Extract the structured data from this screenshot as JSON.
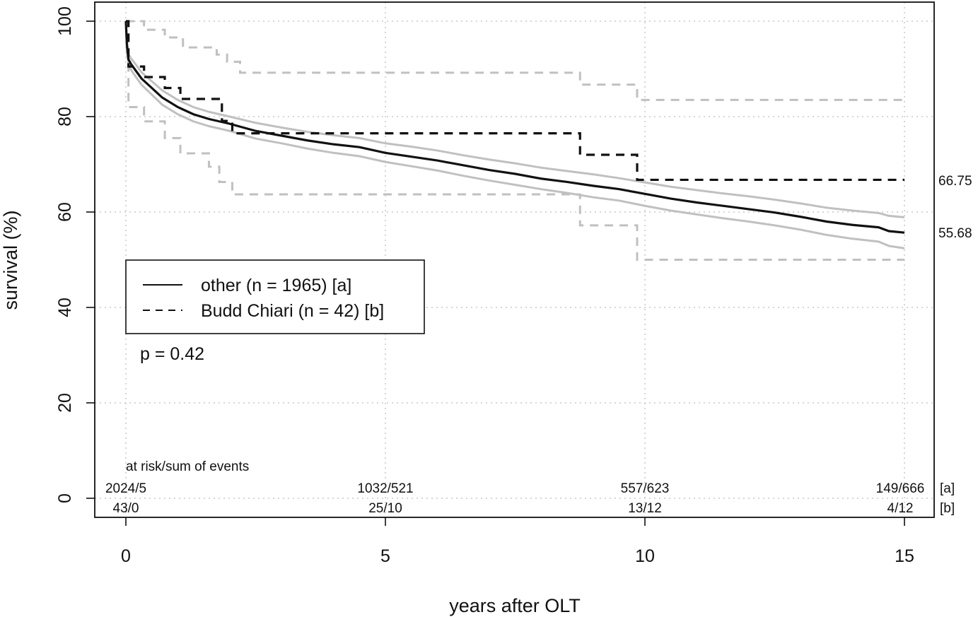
{
  "chart_data": {
    "type": "line",
    "xlabel": "years after OLT",
    "ylabel": "survival (%)",
    "xlim": [
      -0.6,
      15.6
    ],
    "ylim": [
      -4,
      104
    ],
    "x_ticks": [
      0,
      5,
      10,
      15
    ],
    "y_ticks": [
      0,
      20,
      40,
      60,
      80,
      100
    ],
    "grid": true,
    "legend_position": "middle-left",
    "legend": [
      {
        "label": "other (n = 1965) [a]",
        "style": "solid"
      },
      {
        "label": "Budd Chiari (n = 42) [b]",
        "style": "dashed"
      }
    ],
    "annotation_p": "p = 0.42",
    "risk_table": {
      "title": "at risk/sum of events",
      "times": [
        0,
        5,
        10,
        15
      ],
      "rows": [
        {
          "tag": "[a]",
          "values": [
            "2024/5",
            "1032/521",
            "557/623",
            "149/666"
          ]
        },
        {
          "tag": "[b]",
          "values": [
            "43/0",
            "25/10",
            "13/12",
            "4/12"
          ]
        }
      ]
    },
    "end_labels": [
      "66.75",
      "55.68"
    ],
    "colors": {
      "estimate": "#111111",
      "ci": "#c0c0c0",
      "grid": "#c8c8c8"
    },
    "series": [
      {
        "name": "other (n = 1965) [a]",
        "style": "solid",
        "role": "estimate",
        "x": [
          0,
          0.02,
          0.05,
          0.1,
          0.2,
          0.3,
          0.5,
          0.7,
          1.0,
          1.3,
          1.6,
          2.0,
          2.5,
          3.0,
          3.5,
          4.0,
          4.5,
          5.0,
          5.5,
          6.0,
          6.5,
          7.0,
          7.5,
          8.0,
          8.5,
          9.0,
          9.5,
          10.0,
          10.5,
          11.0,
          11.5,
          12.0,
          12.5,
          13.0,
          13.5,
          14.0,
          14.5,
          14.7,
          15.0
        ],
        "y": [
          100,
          95,
          92,
          91,
          89.5,
          88,
          86,
          84,
          82,
          80.5,
          79.5,
          78.5,
          77,
          76,
          75,
          74.2,
          73.6,
          72.4,
          71.6,
          70.8,
          69.8,
          68.8,
          68.0,
          67.0,
          66.3,
          65.5,
          64.8,
          63.8,
          62.8,
          62.0,
          61.3,
          60.6,
          59.9,
          59.0,
          58.0,
          57.3,
          56.8,
          56.0,
          55.68
        ]
      },
      {
        "name": "",
        "style": "solid",
        "role": "ci",
        "x": [
          0,
          0.02,
          0.05,
          0.1,
          0.2,
          0.3,
          0.5,
          0.7,
          1.0,
          1.3,
          1.6,
          2.0,
          2.5,
          3.0,
          3.5,
          4.0,
          4.5,
          5.0,
          5.5,
          6.0,
          6.5,
          7.0,
          7.5,
          8.0,
          8.5,
          9.0,
          9.5,
          10.0,
          10.5,
          11.0,
          11.5,
          12.0,
          12.5,
          13.0,
          13.5,
          14.0,
          14.5,
          14.7,
          15.0
        ],
        "y": [
          100,
          96,
          93,
          92.2,
          90.8,
          89.3,
          87.4,
          85.5,
          83.5,
          82,
          81,
          80,
          78.7,
          77.7,
          76.8,
          76.1,
          75.5,
          74.4,
          73.7,
          72.9,
          71.9,
          71.0,
          70.2,
          69.3,
          68.6,
          67.9,
          67.1,
          66.2,
          65.3,
          64.6,
          63.9,
          63.3,
          62.6,
          61.8,
          60.9,
          60.3,
          59.8,
          59.2,
          58.9
        ]
      },
      {
        "name": "",
        "style": "solid",
        "role": "ci",
        "x": [
          0,
          0.02,
          0.05,
          0.1,
          0.2,
          0.3,
          0.5,
          0.7,
          1.0,
          1.3,
          1.6,
          2.0,
          2.5,
          3.0,
          3.5,
          4.0,
          4.5,
          5.0,
          5.5,
          6.0,
          6.5,
          7.0,
          7.5,
          8.0,
          8.5,
          9.0,
          9.5,
          10.0,
          10.5,
          11.0,
          11.5,
          12.0,
          12.5,
          13.0,
          13.5,
          14.0,
          14.5,
          14.7,
          15.0
        ],
        "y": [
          100,
          94,
          91,
          89.8,
          88.2,
          86.7,
          84.6,
          82.5,
          80.5,
          79,
          78,
          77,
          75.4,
          74.4,
          73.3,
          72.4,
          71.7,
          70.5,
          69.6,
          68.7,
          67.6,
          66.6,
          65.7,
          64.8,
          64.0,
          63.1,
          62.4,
          61.3,
          60.3,
          59.5,
          58.7,
          58.0,
          57.2,
          56.3,
          55.2,
          54.4,
          53.8,
          52.9,
          52.4
        ]
      },
      {
        "name": "Budd Chiari (n = 42) [b]",
        "style": "dashed",
        "role": "estimate",
        "step": true,
        "x": [
          0,
          0.05,
          0.35,
          0.75,
          1.05,
          1.85,
          2.05,
          8.75,
          9.85,
          15.0
        ],
        "y": [
          100,
          90.5,
          88.3,
          86.0,
          83.7,
          79.1,
          76.5,
          72.0,
          66.75,
          66.75
        ]
      },
      {
        "name": "",
        "style": "dashed",
        "role": "ci",
        "step": true,
        "x": [
          0,
          0.35,
          0.75,
          1.1,
          1.75,
          1.95,
          2.2,
          8.75,
          9.85,
          15.0
        ],
        "y": [
          100,
          98.2,
          96.6,
          94.5,
          93.0,
          91.5,
          89.2,
          86.7,
          83.5,
          83.5
        ]
      },
      {
        "name": "",
        "style": "dashed",
        "role": "ci",
        "step": true,
        "x": [
          0,
          0.05,
          0.35,
          0.75,
          1.05,
          1.6,
          1.8,
          2.05,
          8.75,
          9.85,
          15.0
        ],
        "y": [
          100,
          82,
          79,
          75.5,
          72.3,
          69.5,
          66.3,
          63.7,
          57.2,
          50.0,
          50.0
        ]
      }
    ]
  }
}
